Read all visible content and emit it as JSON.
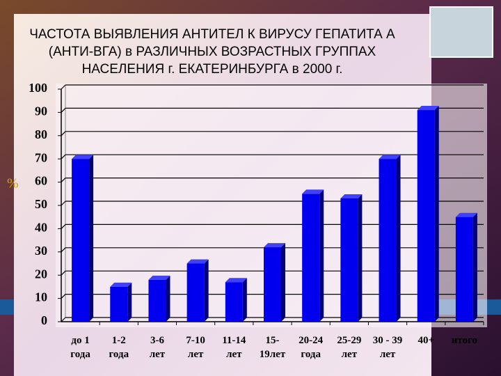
{
  "chart_data": {
    "type": "bar",
    "title": [
      "ЧАСТОТА ВЫЯВЛЕНИЯ АНТИТЕЛ К ВИРУСУ ГЕПАТИТА А",
      "(АНТИ-ВГА) в РАЗЛИЧНЫХ ВОЗРАСТНЫХ ГРУППАХ",
      "НАСЕЛЕНИЯ г. ЕКАТЕРИНБУРГА в 2000 г."
    ],
    "y_label": "%",
    "categories": [
      [
        "до 1",
        "года"
      ],
      [
        "1-2",
        "года"
      ],
      [
        "3-6",
        "лет"
      ],
      [
        "7-10",
        "лет"
      ],
      [
        "11-14",
        "лет"
      ],
      [
        "15-",
        "19лет"
      ],
      [
        "20-24",
        "года"
      ],
      [
        "25-29",
        "лет"
      ],
      [
        "30 - 39",
        "лет"
      ],
      [
        "40+"
      ],
      [
        "итого"
      ]
    ],
    "values": [
      70,
      15,
      18,
      25,
      17,
      32,
      55,
      53,
      70,
      91,
      45
    ],
    "color": "#0000ee",
    "ylim": [
      0,
      100
    ],
    "yticks": [
      0,
      10,
      20,
      30,
      40,
      50,
      60,
      70,
      80,
      90,
      100
    ],
    "grid": true
  }
}
